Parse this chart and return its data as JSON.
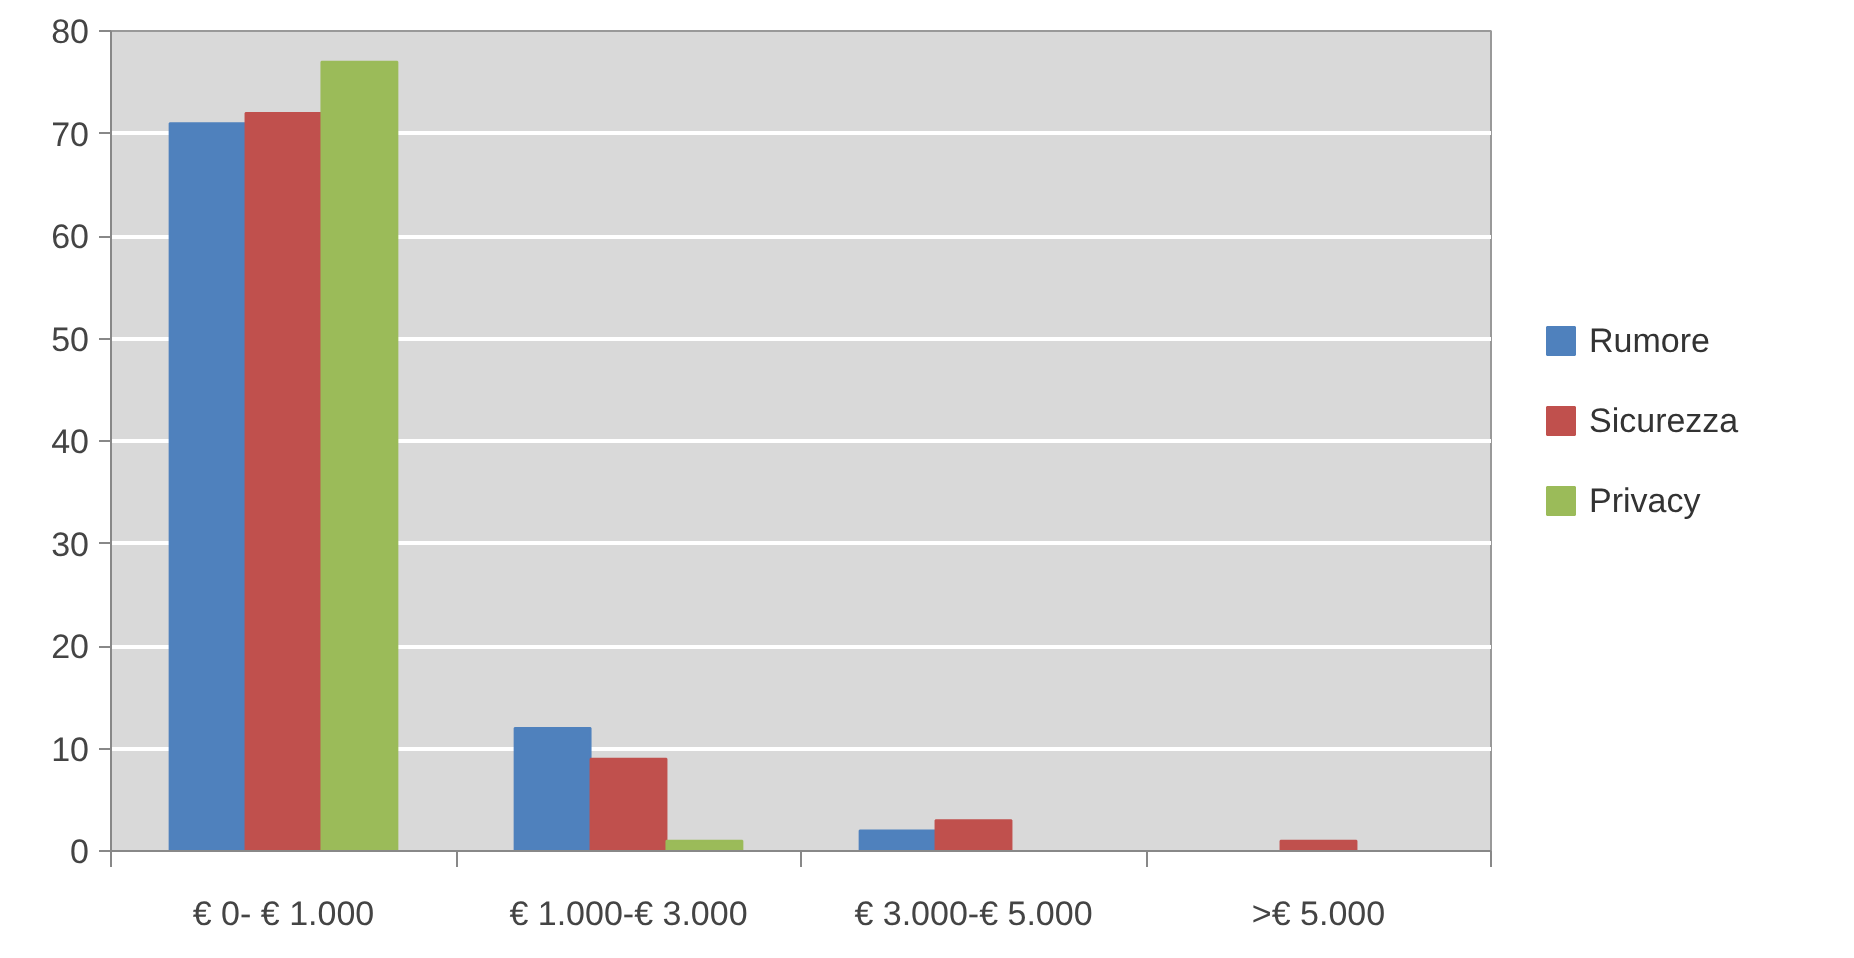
{
  "chart_data": {
    "type": "bar",
    "categories": [
      "€ 0- € 1.000",
      "€ 1.000-€ 3.000",
      "€ 3.000-€ 5.000",
      ">€ 5.000"
    ],
    "series": [
      {
        "name": "Rumore",
        "color": "#4f81bd",
        "values": [
          71,
          12,
          2,
          0
        ]
      },
      {
        "name": "Sicurezza",
        "color": "#c0504d",
        "values": [
          72,
          9,
          3,
          1
        ]
      },
      {
        "name": "Privacy",
        "color": "#9bbb59",
        "values": [
          77,
          1,
          0,
          0
        ]
      }
    ],
    "ylim": [
      0,
      80
    ],
    "yticks": [
      0,
      10,
      20,
      30,
      40,
      50,
      60,
      70,
      80
    ],
    "grid": "y",
    "legend": "right"
  }
}
